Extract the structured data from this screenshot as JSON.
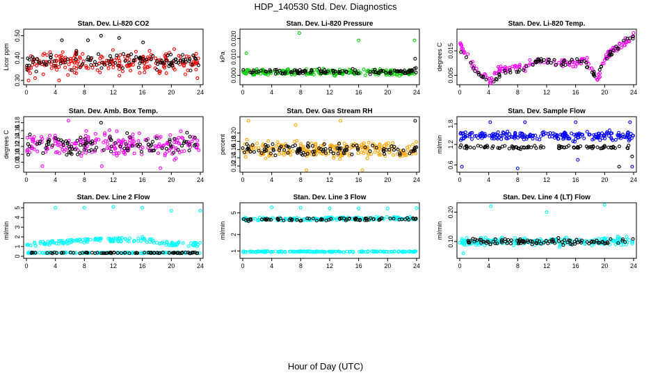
{
  "title": "HDP_140530  Std. Dev. Diagnostics",
  "xlabel": "Hour of Day (UTC)",
  "chart_data": [
    {
      "type": "scatter",
      "title": "Stan. Dev. Li-820 CO2",
      "ylabel": "Licor ppm",
      "xlim": [
        0,
        24
      ],
      "xticks": [
        0,
        4,
        8,
        12,
        16,
        20,
        24
      ],
      "ylim": [
        0.29,
        0.52
      ],
      "yticks": [
        0.3,
        0.4,
        0.5
      ],
      "ytick_labels": [
        "0.30",
        "0.40",
        "0.50"
      ],
      "series": [
        {
          "color": "#ff0000",
          "band": [
            0.31,
            0.45
          ],
          "outliers": [
            [
              0.3,
              0.3
            ],
            [
              1.2,
              0.31
            ],
            [
              4.5,
              0.3
            ],
            [
              20.4,
              0.44
            ],
            [
              23.6,
              0.31
            ]
          ]
        },
        {
          "color": "#000000",
          "band": [
            0.33,
            0.44
          ],
          "outliers": [
            [
              4.9,
              0.48
            ],
            [
              8.5,
              0.48
            ],
            [
              10.3,
              0.5
            ],
            [
              12.8,
              0.49
            ],
            [
              16.1,
              0.47
            ]
          ]
        }
      ]
    },
    {
      "type": "scatter",
      "title": "Stan. Dev. Li-820 Pressure",
      "ylabel": "kPa",
      "xlim": [
        0,
        24
      ],
      "xticks": [
        0,
        4,
        8,
        12,
        16,
        20,
        24
      ],
      "ylim": [
        -0.004,
        0.024
      ],
      "yticks": [
        0.0,
        0.01,
        0.02
      ],
      "ytick_labels": [
        "0.000",
        "0.010",
        "0.020"
      ],
      "series": [
        {
          "color": "#00cc00",
          "band": [
            -0.001,
            0.004
          ],
          "outliers": [
            [
              0.5,
              0.012
            ],
            [
              7.8,
              0.023
            ],
            [
              16.0,
              0.019
            ],
            [
              23.7,
              0.019
            ]
          ]
        },
        {
          "color": "#000000",
          "band": [
            0.0,
            0.004
          ],
          "outliers": [
            [
              23.8,
              0.009
            ],
            [
              23.9,
              0.004
            ]
          ]
        }
      ]
    },
    {
      "type": "scatter",
      "title": "Stan. Dev. Li-820 Temp.",
      "ylabel": "degrees C",
      "xlim": [
        0,
        24
      ],
      "xticks": [
        0,
        4,
        8,
        12,
        16,
        20,
        24
      ],
      "ylim": [
        0.002,
        0.023
      ],
      "yticks": [
        0.005,
        0.015
      ],
      "ytick_labels": [
        "0.005",
        "0.015"
      ],
      "series": [
        {
          "color": "#ff00ff",
          "curve": [
            [
              0,
              0.018
            ],
            [
              1,
              0.013
            ],
            [
              2,
              0.008
            ],
            [
              3,
              0.006
            ],
            [
              3.8,
              0.003
            ],
            [
              4.5,
              0.003
            ],
            [
              5.5,
              0.008
            ],
            [
              7,
              0.008
            ],
            [
              9,
              0.008
            ],
            [
              10.5,
              0.012
            ],
            [
              12,
              0.01
            ],
            [
              14,
              0.01
            ],
            [
              16,
              0.01
            ],
            [
              17.5,
              0.011
            ],
            [
              18.5,
              0.006
            ],
            [
              19.2,
              0.004
            ],
            [
              20,
              0.012
            ],
            [
              21,
              0.015
            ],
            [
              22,
              0.017
            ],
            [
              23,
              0.019
            ],
            [
              24,
              0.021
            ]
          ],
          "spread": 0.0015
        },
        {
          "color": "#000000",
          "curve": [
            [
              0.5,
              0.015
            ],
            [
              2,
              0.007
            ],
            [
              4,
              0.002
            ],
            [
              6,
              0.006
            ],
            [
              9,
              0.008
            ],
            [
              11,
              0.011
            ],
            [
              14,
              0.01
            ],
            [
              17,
              0.011
            ],
            [
              18.8,
              0.005
            ],
            [
              20.5,
              0.013
            ],
            [
              22,
              0.017
            ],
            [
              24,
              0.021
            ]
          ],
          "spread": 0.001
        }
      ]
    },
    {
      "type": "scatter",
      "title": "Stan. Dev. Amb. Box Temp.",
      "ylabel": "degrees C",
      "xlim": [
        0,
        24
      ],
      "xticks": [
        0,
        4,
        8,
        12,
        16,
        20,
        24
      ],
      "ylim": [
        0.06,
        0.19
      ],
      "yticks": [
        0.08,
        0.1,
        0.12,
        0.14,
        0.16,
        0.18
      ],
      "ytick_labels": [
        "0.08",
        "0.10",
        "0.12",
        "0.14",
        "0.16",
        "0.18"
      ],
      "series": [
        {
          "color": "#ff00ff",
          "band": [
            0.08,
            0.17
          ],
          "outliers": [
            [
              2.2,
              0.07
            ],
            [
              5.8,
              0.185
            ],
            [
              10.4,
              0.07
            ],
            [
              18.5,
              0.065
            ]
          ]
        },
        {
          "color": "#000000",
          "band": [
            0.09,
            0.16
          ],
          "outliers": [
            [
              10.3,
              0.18
            ]
          ]
        }
      ]
    },
    {
      "type": "scatter",
      "title": "Stan. Dev. Gas Stream RH",
      "ylabel": "percent",
      "xlim": [
        0,
        24
      ],
      "xticks": [
        0,
        4,
        8,
        12,
        16,
        20,
        24
      ],
      "ylim": [
        0.11,
        0.235
      ],
      "yticks": [
        0.12,
        0.14,
        0.16,
        0.18,
        0.2
      ],
      "ytick_labels": [
        "0.12",
        "0.14",
        "0.16",
        "0.18",
        "0.20"
      ],
      "series": [
        {
          "color": "#ffa500",
          "band": [
            0.13,
            0.19
          ],
          "outliers": [
            [
              0.8,
              0.23
            ],
            [
              7.3,
              0.22
            ],
            [
              8.8,
              0.11
            ],
            [
              13.5,
              0.23
            ],
            [
              16.5,
              0.11
            ]
          ]
        },
        {
          "color": "#000000",
          "band": [
            0.14,
            0.18
          ],
          "outliers": [
            [
              23.8,
              0.23
            ]
          ]
        }
      ]
    },
    {
      "type": "scatter",
      "title": "Stan. Dev. Sample Flow",
      "ylabel": "ml/min",
      "xlim": [
        0,
        24
      ],
      "xticks": [
        0,
        4,
        8,
        12,
        16,
        20,
        24
      ],
      "ylim": [
        0.45,
        1.95
      ],
      "yticks": [
        0.6,
        1.2,
        1.8
      ],
      "ytick_labels": [
        "0.6",
        "1.2",
        "1.8"
      ],
      "series": [
        {
          "color": "#0000ff",
          "band": [
            1.25,
            1.65
          ],
          "outliers": [
            [
              0.3,
              0.55
            ],
            [
              4.2,
              1.85
            ],
            [
              8.0,
              0.5
            ],
            [
              9.0,
              1.85
            ],
            [
              16.0,
              1.85
            ],
            [
              16.3,
              0.75
            ],
            [
              23.5,
              1.85
            ],
            [
              23.8,
              0.55
            ]
          ]
        },
        {
          "color": "#000000",
          "band": [
            1.05,
            1.2
          ],
          "outliers": [
            [
              22.0,
              0.55
            ],
            [
              23.8,
              0.85
            ]
          ]
        }
      ]
    },
    {
      "type": "scatter",
      "title": "Stan. Dev. Line 2 Flow",
      "ylabel": "ml/min",
      "xlim": [
        0,
        24
      ],
      "xticks": [
        0,
        4,
        8,
        12,
        16,
        20,
        24
      ],
      "ylim": [
        0,
        5.3
      ],
      "yticks": [
        0,
        1,
        2,
        3,
        4,
        5
      ],
      "ytick_labels": [
        "0",
        "1",
        "2",
        "3",
        "4",
        "5"
      ],
      "series": [
        {
          "color": "#00ffff",
          "curve": [
            [
              0,
              1.2
            ],
            [
              4,
              1.4
            ],
            [
              8,
              1.6
            ],
            [
              12,
              1.7
            ],
            [
              16,
              1.7
            ],
            [
              18,
              1.5
            ],
            [
              20,
              1.3
            ],
            [
              24,
              1.2
            ]
          ],
          "spread": 0.2,
          "outliers": [
            [
              4,
              5.0
            ],
            [
              8,
              5.0
            ],
            [
              12,
              5.1
            ],
            [
              16,
              5.0
            ],
            [
              20,
              4.7
            ],
            [
              24,
              4.7
            ],
            [
              16,
              2.0
            ]
          ]
        },
        {
          "color": "#00ffff",
          "curve": [
            [
              0,
              0.35
            ],
            [
              24,
              0.35
            ]
          ],
          "spread": 0.05
        },
        {
          "color": "#000000",
          "curve": [
            [
              0,
              0.35
            ],
            [
              24,
              0.35
            ]
          ],
          "spread": 0.05
        }
      ]
    },
    {
      "type": "scatter",
      "title": "Stan. Dev. Line 3 Flow",
      "ylabel": "ml/min",
      "xlim": [
        0,
        24
      ],
      "xticks": [
        0,
        4,
        8,
        12,
        16,
        20,
        24
      ],
      "ylim": [
        0.8,
        7.0
      ],
      "ylog": true,
      "yticks": [
        1,
        2,
        5
      ],
      "ytick_labels": [
        "1",
        "2",
        "5"
      ],
      "series": [
        {
          "color": "#00ffff",
          "curve": [
            [
              0,
              3.8
            ],
            [
              24,
              4.0
            ]
          ],
          "spread": 0.25,
          "outliers": [
            [
              4,
              6.3
            ],
            [
              8,
              6.2
            ],
            [
              12,
              6.0
            ],
            [
              16,
              6.0
            ],
            [
              20,
              6.0
            ],
            [
              24,
              6.1
            ]
          ]
        },
        {
          "color": "#00ffff",
          "curve": [
            [
              0,
              0.97
            ],
            [
              24,
              0.97
            ]
          ],
          "spread": 0.02
        },
        {
          "color": "#000000",
          "curve": [
            [
              0.5,
              3.7
            ],
            [
              24,
              3.9
            ]
          ],
          "spread": 0.2
        }
      ]
    },
    {
      "type": "scatter",
      "title": "Stan. Dev. Line 4 (LT) Flow",
      "ylabel": "ml/min",
      "xlim": [
        0,
        24
      ],
      "xticks": [
        0,
        4,
        8,
        12,
        16,
        20,
        24
      ],
      "ylim": [
        0.05,
        0.225
      ],
      "yticks": [
        0.1,
        0.2
      ],
      "ytick_labels": [
        "0.10",
        "0.20"
      ],
      "series": [
        {
          "color": "#00ffff",
          "band": [
            0.08,
            0.12
          ],
          "outliers": [
            [
              4.3,
              0.22
            ],
            [
              12.0,
              0.2
            ],
            [
              20.0,
              0.225
            ],
            [
              0.5,
              0.06
            ]
          ]
        },
        {
          "color": "#000000",
          "band": [
            0.085,
            0.115
          ]
        }
      ]
    }
  ]
}
